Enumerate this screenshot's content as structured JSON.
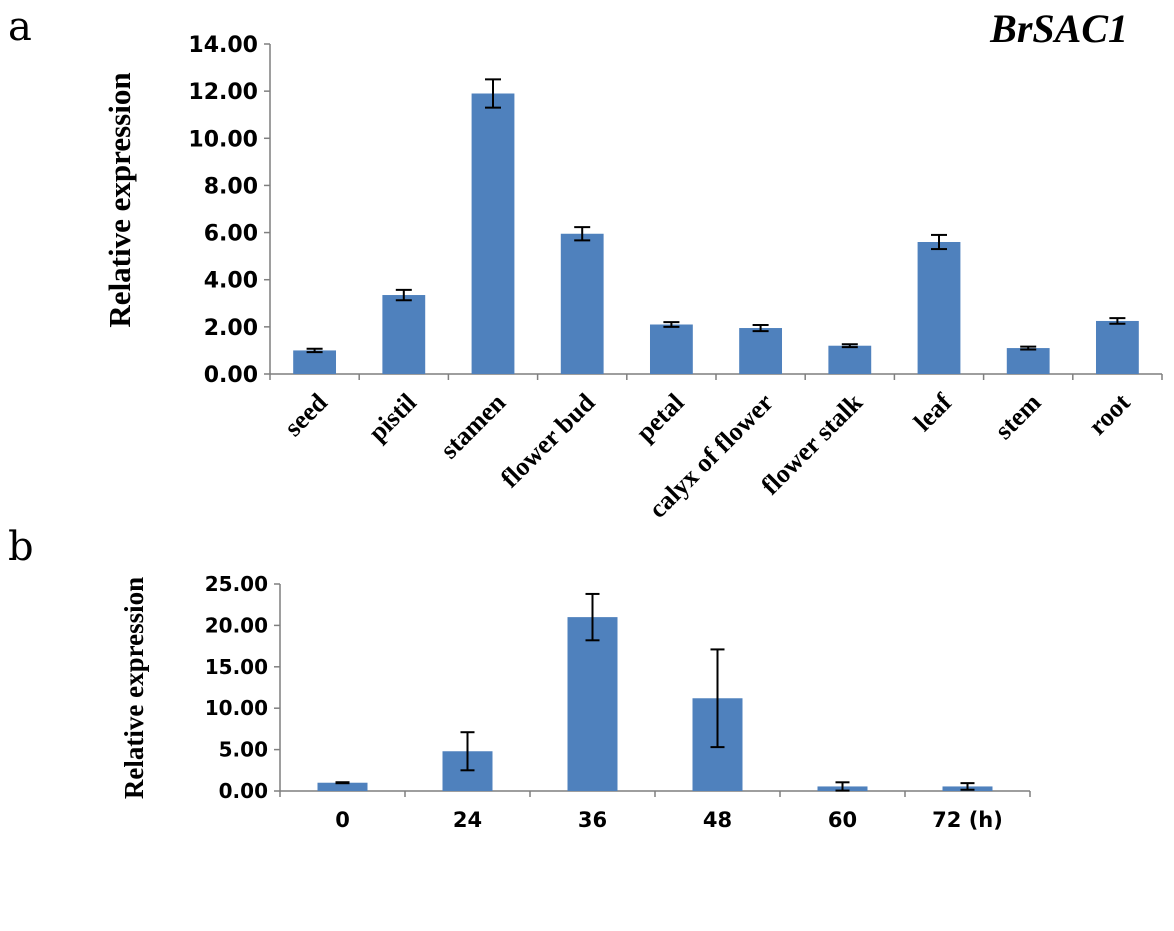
{
  "chart_data": [
    {
      "panel": "a",
      "type": "bar",
      "title": "BrSAC1",
      "ylabel": "Relative expression",
      "xlabel": "",
      "ylim": [
        0,
        14
      ],
      "yticks": [
        "0.00",
        "2.00",
        "4.00",
        "6.00",
        "8.00",
        "10.00",
        "12.00",
        "14.00"
      ],
      "categories": [
        "seed",
        "pistil",
        "stamen",
        "flower bud",
        "petal",
        "calyx of flower",
        "flower stalk",
        "leaf",
        "stem",
        "root"
      ],
      "values": [
        1.0,
        3.35,
        11.9,
        5.95,
        2.1,
        1.95,
        1.2,
        5.6,
        1.1,
        2.25
      ],
      "errors": [
        0.07,
        0.22,
        0.6,
        0.28,
        0.1,
        0.13,
        0.06,
        0.3,
        0.06,
        0.12
      ],
      "color": "#4f81bd",
      "grid": false
    },
    {
      "panel": "b",
      "type": "bar",
      "title": "",
      "ylabel": "Relative expression",
      "xlabel": "",
      "ylim": [
        0,
        25
      ],
      "yticks": [
        "0.00",
        "5.00",
        "10.00",
        "15.00",
        "20.00",
        "25.00"
      ],
      "categories": [
        "0",
        "24",
        "36",
        "48",
        "60",
        "72 (h)"
      ],
      "values": [
        1.0,
        4.8,
        21.0,
        11.2,
        0.55,
        0.55
      ],
      "errors": [
        0.06,
        2.3,
        2.8,
        5.9,
        0.5,
        0.4
      ],
      "color": "#4f81bd",
      "grid": false
    }
  ]
}
